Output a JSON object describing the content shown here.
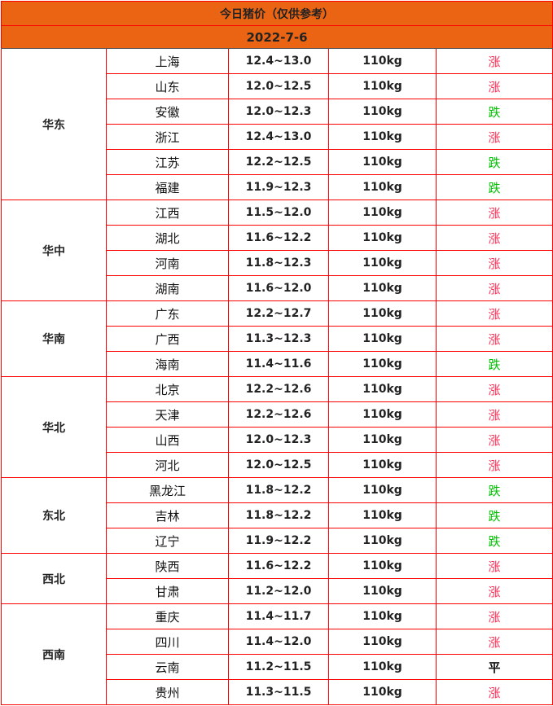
{
  "title": "今日猪价（仅供参考）",
  "date": "2022-7-6",
  "colors": {
    "header_bg": "#EA6414",
    "border": "#FF0000",
    "rise": "#FF2D55",
    "fall": "#00C000",
    "flat": "#111111"
  },
  "groups": [
    {
      "region": "华东",
      "rows": [
        {
          "province": "上海",
          "price": "12.4~13.0",
          "weight": "110kg",
          "trend": "涨"
        },
        {
          "province": "山东",
          "price": "12.0~12.5",
          "weight": "110kg",
          "trend": "涨"
        },
        {
          "province": "安徽",
          "price": "12.0~12.3",
          "weight": "110kg",
          "trend": "跌"
        },
        {
          "province": "浙江",
          "price": "12.4~13.0",
          "weight": "110kg",
          "trend": "涨"
        },
        {
          "province": "江苏",
          "price": "12.2~12.5",
          "weight": "110kg",
          "trend": "跌"
        },
        {
          "province": "福建",
          "price": "11.9~12.3",
          "weight": "110kg",
          "trend": "跌"
        }
      ]
    },
    {
      "region": "华中",
      "rows": [
        {
          "province": "江西",
          "price": "11.5~12.0",
          "weight": "110kg",
          "trend": "涨"
        },
        {
          "province": "湖北",
          "price": "11.6~12.2",
          "weight": "110kg",
          "trend": "涨"
        },
        {
          "province": "河南",
          "price": "11.8~12.3",
          "weight": "110kg",
          "trend": "涨"
        },
        {
          "province": "湖南",
          "price": "11.6~12.0",
          "weight": "110kg",
          "trend": "涨"
        }
      ]
    },
    {
      "region": "华南",
      "rows": [
        {
          "province": "广东",
          "price": "12.2~12.7",
          "weight": "110kg",
          "trend": "涨"
        },
        {
          "province": "广西",
          "price": "11.3~12.3",
          "weight": "110kg",
          "trend": "涨"
        },
        {
          "province": "海南",
          "price": "11.4~11.6",
          "weight": "110kg",
          "trend": "跌"
        }
      ]
    },
    {
      "region": "华北",
      "rows": [
        {
          "province": "北京",
          "price": "12.2~12.6",
          "weight": "110kg",
          "trend": "涨"
        },
        {
          "province": "天津",
          "price": "12.2~12.6",
          "weight": "110kg",
          "trend": "涨"
        },
        {
          "province": "山西",
          "price": "12.0~12.3",
          "weight": "110kg",
          "trend": "涨"
        },
        {
          "province": "河北",
          "price": "12.0~12.5",
          "weight": "110kg",
          "trend": "涨"
        }
      ]
    },
    {
      "region": "东北",
      "rows": [
        {
          "province": "黑龙江",
          "price": "11.8~12.2",
          "weight": "110kg",
          "trend": "跌"
        },
        {
          "province": "吉林",
          "price": "11.8~12.2",
          "weight": "110kg",
          "trend": "跌"
        },
        {
          "province": "辽宁",
          "price": "11.9~12.2",
          "weight": "110kg",
          "trend": "跌"
        }
      ]
    },
    {
      "region": "西北",
      "rows": [
        {
          "province": "陕西",
          "price": "11.6~12.2",
          "weight": "110kg",
          "trend": "涨"
        },
        {
          "province": "甘肃",
          "price": "11.2~12.0",
          "weight": "110kg",
          "trend": "涨"
        }
      ]
    },
    {
      "region": "西南",
      "rows": [
        {
          "province": "重庆",
          "price": "11.4~11.7",
          "weight": "110kg",
          "trend": "涨"
        },
        {
          "province": "四川",
          "price": "11.4~12.0",
          "weight": "110kg",
          "trend": "涨"
        },
        {
          "province": "云南",
          "price": "11.2~11.5",
          "weight": "110kg",
          "trend": "平"
        },
        {
          "province": "贵州",
          "price": "11.3~11.5",
          "weight": "110kg",
          "trend": "涨"
        }
      ]
    }
  ]
}
